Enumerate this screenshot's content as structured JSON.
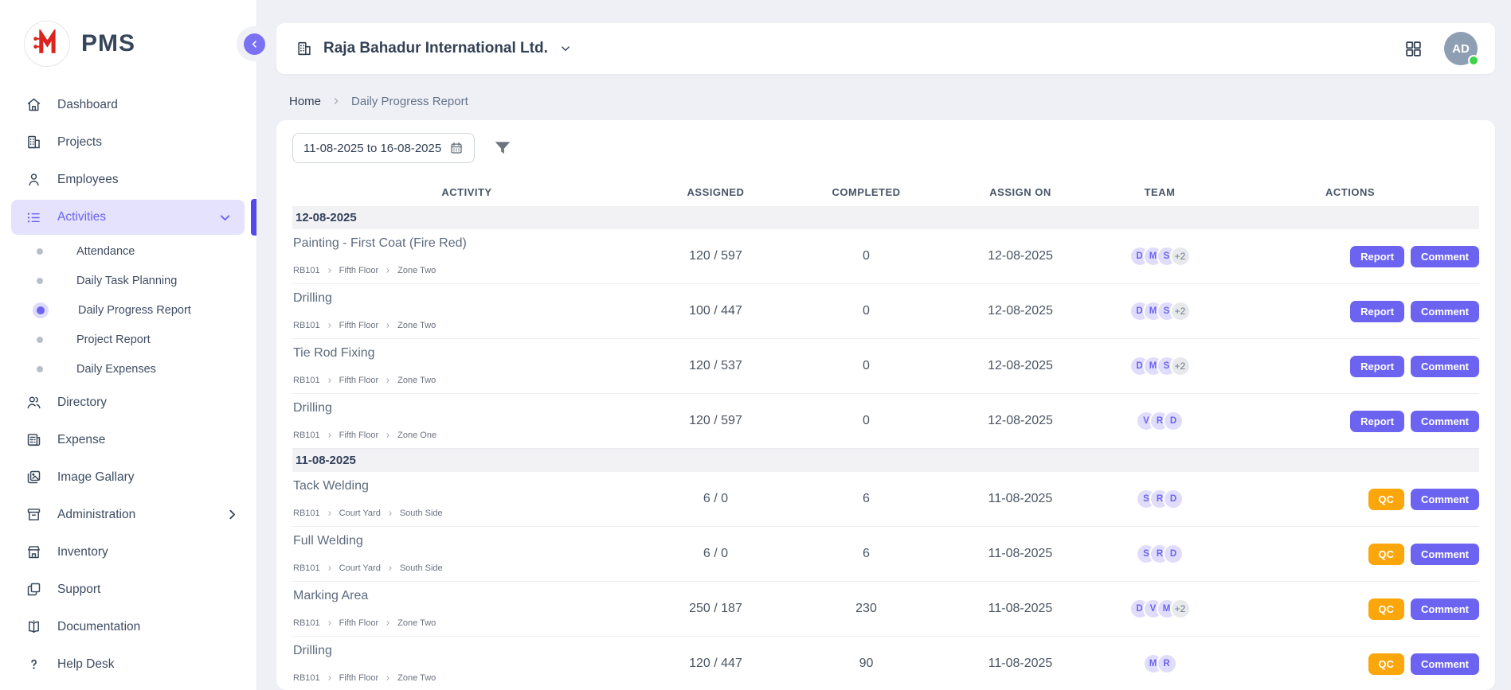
{
  "app": {
    "name": "PMS"
  },
  "sidebar": {
    "items": [
      {
        "label": "Dashboard",
        "icon": "home"
      },
      {
        "label": "Projects",
        "icon": "building"
      },
      {
        "label": "Employees",
        "icon": "user"
      },
      {
        "label": "Activities",
        "icon": "list",
        "active": true,
        "chevron": "down",
        "children": [
          {
            "label": "Attendance"
          },
          {
            "label": "Daily Task Planning"
          },
          {
            "label": "Daily Progress Report",
            "active": true
          },
          {
            "label": "Project Report"
          },
          {
            "label": "Daily Expenses"
          }
        ]
      },
      {
        "label": "Directory",
        "icon": "users"
      },
      {
        "label": "Expense",
        "icon": "invoice"
      },
      {
        "label": "Image Gallary",
        "icon": "gallery"
      },
      {
        "label": "Administration",
        "icon": "archive",
        "chevron": "right"
      },
      {
        "label": "Inventory",
        "icon": "store"
      },
      {
        "label": "Support",
        "icon": "copy"
      },
      {
        "label": "Documentation",
        "icon": "book"
      },
      {
        "label": "Help Desk",
        "icon": "question"
      }
    ]
  },
  "header": {
    "company": "Raja Bahadur International Ltd.",
    "avatar_initials": "AD",
    "status": "online"
  },
  "breadcrumb": {
    "home": "Home",
    "current": "Daily Progress Report"
  },
  "filters": {
    "date_range": "11-08-2025 to 16-08-2025"
  },
  "table": {
    "columns": [
      "Activity",
      "Assigned",
      "Completed",
      "Assign On",
      "Team",
      "Actions"
    ],
    "groups": [
      {
        "date": "12-08-2025",
        "rows": [
          {
            "activity": "Painting - First Coat (Fire Red)",
            "path": [
              "RB101",
              "Fifth Floor",
              "Zone Two"
            ],
            "assigned": "120 / 597",
            "completed": "0",
            "assign_on": "12-08-2025",
            "team": [
              "D",
              "M",
              "S"
            ],
            "team_extra": "+2",
            "actions": [
              {
                "label": "Report",
                "style": "indigo"
              },
              {
                "label": "Comment",
                "style": "indigo"
              }
            ]
          },
          {
            "activity": "Drilling",
            "path": [
              "RB101",
              "Fifth Floor",
              "Zone Two"
            ],
            "assigned": "100 / 447",
            "completed": "0",
            "assign_on": "12-08-2025",
            "team": [
              "D",
              "M",
              "S"
            ],
            "team_extra": "+2",
            "actions": [
              {
                "label": "Report",
                "style": "indigo"
              },
              {
                "label": "Comment",
                "style": "indigo"
              }
            ]
          },
          {
            "activity": "Tie Rod Fixing",
            "path": [
              "RB101",
              "Fifth Floor",
              "Zone Two"
            ],
            "assigned": "120 / 537",
            "completed": "0",
            "assign_on": "12-08-2025",
            "team": [
              "D",
              "M",
              "S"
            ],
            "team_extra": "+2",
            "actions": [
              {
                "label": "Report",
                "style": "indigo"
              },
              {
                "label": "Comment",
                "style": "indigo"
              }
            ]
          },
          {
            "activity": "Drilling",
            "path": [
              "RB101",
              "Fifth Floor",
              "Zone One"
            ],
            "assigned": "120 / 597",
            "completed": "0",
            "assign_on": "12-08-2025",
            "team": [
              "V",
              "R",
              "D"
            ],
            "team_extra": "",
            "actions": [
              {
                "label": "Report",
                "style": "indigo"
              },
              {
                "label": "Comment",
                "style": "indigo"
              }
            ]
          }
        ]
      },
      {
        "date": "11-08-2025",
        "rows": [
          {
            "activity": "Tack Welding",
            "path": [
              "RB101",
              "Court Yard",
              "South Side"
            ],
            "assigned": "6 / 0",
            "completed": "6",
            "assign_on": "11-08-2025",
            "team": [
              "S",
              "R",
              "D"
            ],
            "team_extra": "",
            "actions": [
              {
                "label": "QC",
                "style": "warning"
              },
              {
                "label": "Comment",
                "style": "indigo"
              }
            ]
          },
          {
            "activity": "Full Welding",
            "path": [
              "RB101",
              "Court Yard",
              "South Side"
            ],
            "assigned": "6 / 0",
            "completed": "6",
            "assign_on": "11-08-2025",
            "team": [
              "S",
              "R",
              "D"
            ],
            "team_extra": "",
            "actions": [
              {
                "label": "QC",
                "style": "warning"
              },
              {
                "label": "Comment",
                "style": "indigo"
              }
            ]
          },
          {
            "activity": "Marking Area",
            "path": [
              "RB101",
              "Fifth Floor",
              "Zone Two"
            ],
            "assigned": "250 / 187",
            "completed": "230",
            "assign_on": "11-08-2025",
            "team": [
              "D",
              "V",
              "M"
            ],
            "team_extra": "+2",
            "actions": [
              {
                "label": "QC",
                "style": "warning"
              },
              {
                "label": "Comment",
                "style": "indigo"
              }
            ]
          },
          {
            "activity": "Drilling",
            "path": [
              "RB101",
              "Fifth Floor",
              "Zone Two"
            ],
            "assigned": "120 / 447",
            "completed": "90",
            "assign_on": "11-08-2025",
            "team": [
              "M",
              "R"
            ],
            "team_extra": "",
            "actions": [
              {
                "label": "QC",
                "style": "warning"
              },
              {
                "label": "Comment",
                "style": "indigo"
              }
            ]
          }
        ]
      }
    ]
  },
  "colors": {
    "accent": "#6c63f1",
    "accent_light": "#e4e2fc",
    "active_bar": "#5449ef",
    "warning": "#fba60a",
    "logo_red": "#d9251d",
    "avatar_bg": "#8e9fb3",
    "online_green": "#3fd24d",
    "band_bg": "#f2f2f5",
    "page_bg": "#eff0f5"
  }
}
